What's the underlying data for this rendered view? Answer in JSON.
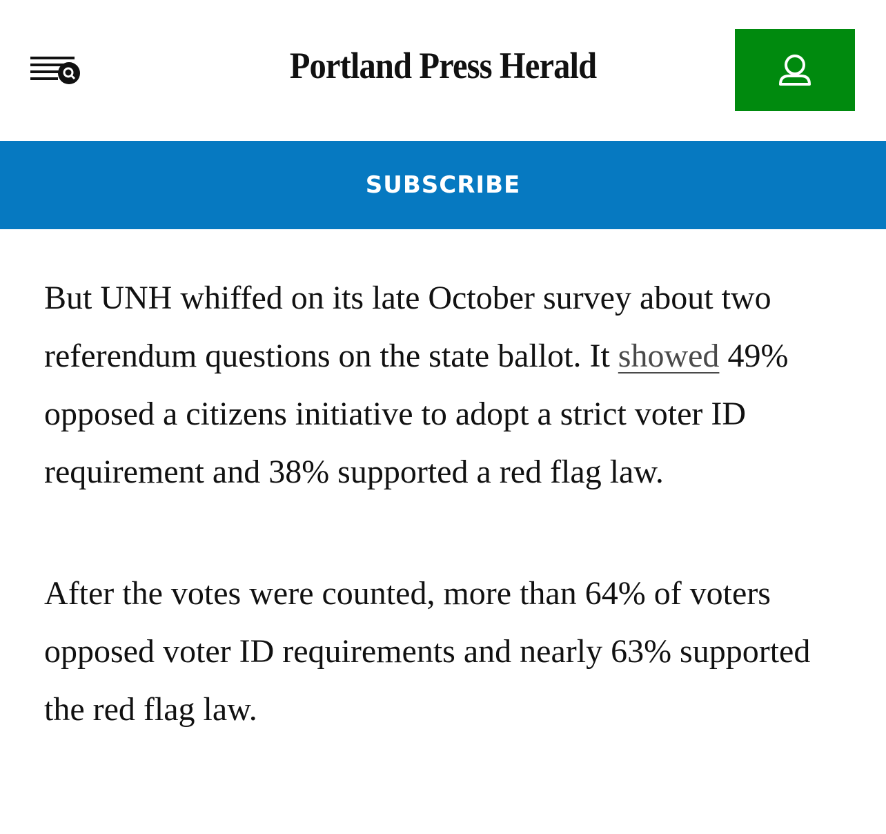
{
  "header": {
    "logo": "Portland Press Herald"
  },
  "subscribe": {
    "label": "SUBSCRIBE"
  },
  "article": {
    "paragraphs": [
      {
        "before": "But UNH whiffed on its late October survey about two referendum questions on the state ballot. It ",
        "link": "showed",
        "after": " 49% opposed a citizens initiative to adopt a strict voter ID requirement and 38% supported a red flag law."
      },
      {
        "text": "After the votes were counted, more than 64% of voters opposed voter ID requirements and nearly 63% supported the red flag law."
      }
    ]
  }
}
